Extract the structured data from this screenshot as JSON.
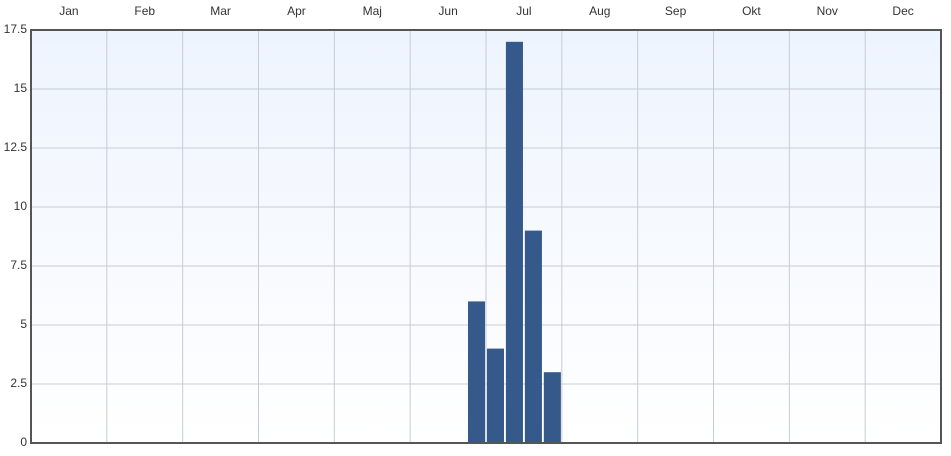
{
  "chart_data": {
    "type": "bar",
    "months": [
      "Jan",
      "Feb",
      "Mar",
      "Apr",
      "Maj",
      "Jun",
      "Jul",
      "Aug",
      "Sep",
      "Okt",
      "Nov",
      "Dec"
    ],
    "values": [
      0,
      0,
      0,
      0,
      0,
      0,
      0,
      0,
      0,
      0,
      0,
      0,
      0,
      0,
      0,
      0,
      0,
      0,
      0,
      0,
      0,
      0,
      0,
      6,
      4,
      17,
      9,
      3,
      0,
      0,
      0,
      0,
      0,
      0,
      0,
      0,
      0,
      0,
      0,
      0,
      0,
      0,
      0,
      0,
      0,
      0,
      0,
      0
    ],
    "color": "#34598a",
    "ylim": [
      0,
      17.5
    ],
    "yticks": [
      0,
      2.5,
      5,
      7.5,
      10,
      12.5,
      15,
      17.5
    ],
    "grid": true
  }
}
